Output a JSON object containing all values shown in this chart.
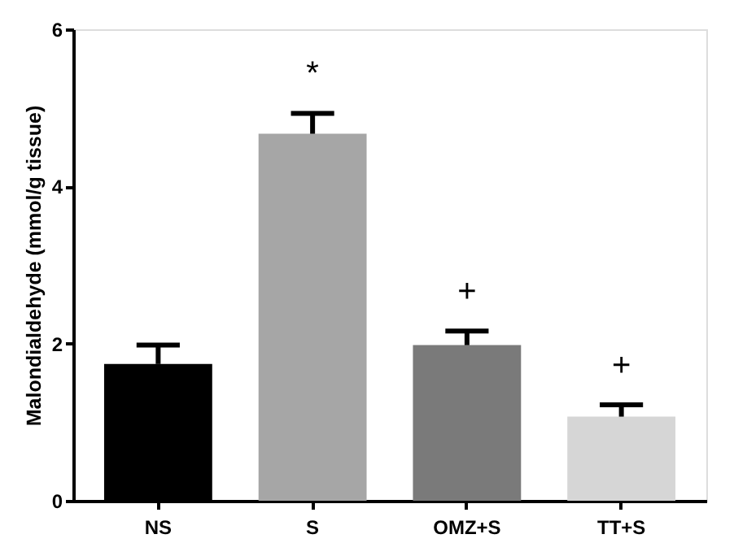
{
  "chart_data": {
    "type": "bar",
    "ylabel": "Malondialdehyde (mmol/g tissue)",
    "categories": [
      "NS",
      "S",
      "OMZ+S",
      "TT+S"
    ],
    "values": [
      1.74,
      4.67,
      1.98,
      1.07
    ],
    "colors": [
      "#000000",
      "#a6a6a6",
      "#7a7a7a",
      "#d6d6d6"
    ],
    "errors": [
      [
        1.74,
        1.98
      ],
      [
        4.67,
        4.93
      ],
      [
        1.98,
        2.16
      ],
      [
        1.07,
        1.22
      ]
    ],
    "ylim": [
      0,
      6
    ],
    "yticks": [
      0,
      2,
      4,
      6
    ],
    "grid": false,
    "annotations": [
      {
        "text": "*",
        "x": "S",
        "y": 4.93
      },
      {
        "text": "+",
        "x": "OMZ+S",
        "y": 2.16
      },
      {
        "text": "+",
        "x": "TT+S",
        "y": 1.22
      }
    ]
  }
}
